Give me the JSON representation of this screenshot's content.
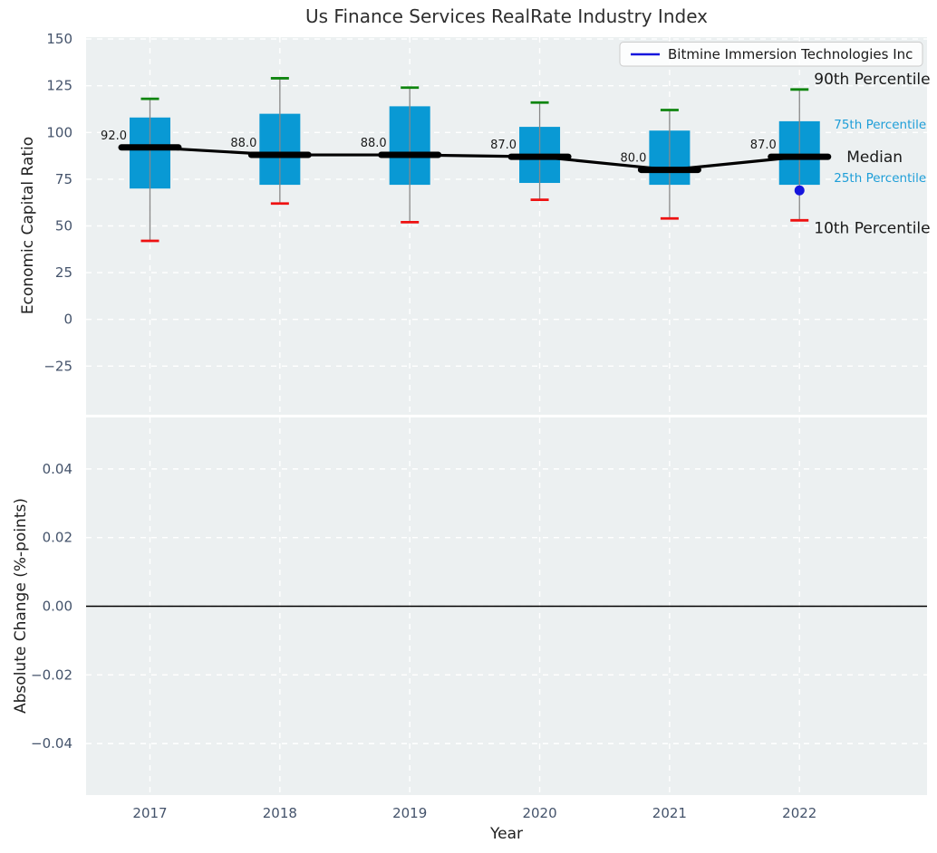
{
  "title": "Us Finance Services RealRate Industry Index",
  "legend": {
    "label": "Bitmine Immersion Technologies Inc"
  },
  "colors": {
    "box_fill": "#0999d4",
    "whisker": "#888888",
    "cap_90th": "#0f850f",
    "cap_10th": "#ee1111",
    "median_line": "#000000",
    "company_blue": "#1515dd",
    "percentile_label_blue": "#1e9ed8",
    "tick_label": "#44536b",
    "text_dark": "#1a1a1a",
    "title_color": "#2e2e2e",
    "panel_bg": "#ecf0f1",
    "gridline": "#ffffff",
    "legend_border": "#cccccc",
    "zero_line": "#000000"
  },
  "chart_data": [
    {
      "type": "boxplot",
      "panel": "top",
      "title": "Us Finance Services RealRate Industry Index",
      "ylabel": "Economic Capital Ratio",
      "ylim": [
        -51,
        151
      ],
      "yticks": [
        {
          "v": 150,
          "label": "150"
        },
        {
          "v": 125,
          "label": "125"
        },
        {
          "v": 100,
          "label": "100"
        },
        {
          "v": 75,
          "label": "75"
        },
        {
          "v": 50,
          "label": "50"
        },
        {
          "v": 25,
          "label": "25"
        },
        {
          "v": 0,
          "label": "0"
        },
        {
          "v": -25,
          "label": "−25"
        }
      ],
      "categories": [
        "2017",
        "2018",
        "2019",
        "2020",
        "2021",
        "2022"
      ],
      "grid": "white-dashed",
      "legend_position": "upper right",
      "legend_entries": [
        "Bitmine Immersion Technologies Inc"
      ],
      "boxes": [
        {
          "year": "2017",
          "p10": 42,
          "p25": 70,
          "median": 92,
          "p75": 108,
          "p90": 118,
          "median_label": "92.0"
        },
        {
          "year": "2018",
          "p10": 62,
          "p25": 72,
          "median": 88,
          "p75": 110,
          "p90": 129,
          "median_label": "88.0"
        },
        {
          "year": "2019",
          "p10": 52,
          "p25": 72,
          "median": 88,
          "p75": 114,
          "p90": 124,
          "median_label": "88.0"
        },
        {
          "year": "2020",
          "p10": 64,
          "p25": 73,
          "median": 87,
          "p75": 103,
          "p90": 116,
          "median_label": "87.0"
        },
        {
          "year": "2021",
          "p10": 54,
          "p25": 72,
          "median": 80,
          "p75": 101,
          "p90": 112,
          "median_label": "80.0"
        },
        {
          "year": "2022",
          "p10": 53,
          "p25": 72,
          "median": 87,
          "p75": 106,
          "p90": 123,
          "median_label": "87.0"
        }
      ],
      "median_trend": [
        92,
        88,
        88,
        87,
        80,
        87
      ],
      "company_point": {
        "series": "Bitmine Immersion Technologies Inc",
        "year": "2022",
        "value": 69
      },
      "percentile_annotations": [
        "90th Percentile",
        "75th Percentile",
        "Median",
        "25th Percentile",
        "10th Percentile"
      ]
    },
    {
      "type": "bar",
      "panel": "bottom",
      "ylabel": "Absolute Change (%-points)",
      "xlabel": "Year",
      "ylim": [
        -0.055,
        0.055
      ],
      "yticks": [
        {
          "v": 0.04,
          "label": "0.04"
        },
        {
          "v": 0.02,
          "label": "0.02"
        },
        {
          "v": 0.0,
          "label": "0.00"
        },
        {
          "v": -0.02,
          "label": "−0.02"
        },
        {
          "v": -0.04,
          "label": "−0.04"
        }
      ],
      "categories": [
        "2017",
        "2018",
        "2019",
        "2020",
        "2021",
        "2022"
      ],
      "values": [],
      "zero_line": 0.0,
      "grid": "white-dashed"
    }
  ]
}
